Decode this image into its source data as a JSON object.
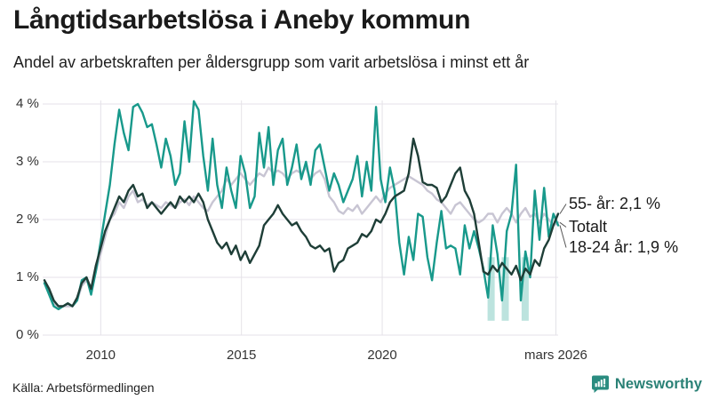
{
  "header": {
    "title": "Långtidsarbetslösa i Aneby kommun",
    "subtitle": "Andel av arbetskraften per åldersgrupp som varit arbetslösa i minst ett år"
  },
  "footer": {
    "source": "Källa: Arbetsförmedlingen",
    "brand": "Newsworthy",
    "brand_color": "#2a8176",
    "brand_icon": "newsworthy-speech-bubble-bar-chart-icon"
  },
  "chart_data": {
    "type": "line",
    "title": "Långtidsarbetslösa i Aneby kommun",
    "subtitle": "Andel av arbetskraften per åldersgrupp som varit arbetslösa i minst ett år",
    "grid_color": "#e4e2e8",
    "leader_color": "#555555",
    "highlight_color": "#7ac7bd",
    "x_axis": {
      "start": 2008.0,
      "end": 2026.25,
      "ticks": [
        {
          "value": 2010,
          "label": "2010"
        },
        {
          "value": 2015,
          "label": "2015"
        },
        {
          "value": 2020,
          "label": "2020"
        },
        {
          "value": 2026.17,
          "label": "mars 2026"
        }
      ]
    },
    "y_axis": {
      "min": 0,
      "max": 4,
      "unit": "%",
      "ticks": [
        {
          "value": 0,
          "label": "0 %"
        },
        {
          "value": 1,
          "label": "1 %"
        },
        {
          "value": 2,
          "label": "2 %"
        },
        {
          "value": 3,
          "label": "3 %"
        },
        {
          "value": 4,
          "label": "4 %"
        }
      ]
    },
    "draw_order": [
      2,
      0,
      1
    ],
    "series": [
      {
        "id": "18-24",
        "name": "18-24 år",
        "color": "#18998b",
        "latest_label": "18-24 år: 1,9 %",
        "latest_value": 1.9,
        "values": [
          0.9,
          0.7,
          0.5,
          0.45,
          0.5,
          0.55,
          0.5,
          0.6,
          0.95,
          1.0,
          0.7,
          1.1,
          1.6,
          2.1,
          2.6,
          3.3,
          3.9,
          3.5,
          3.2,
          3.95,
          4.0,
          3.85,
          3.6,
          3.65,
          3.3,
          2.9,
          3.4,
          3.1,
          2.6,
          2.8,
          3.7,
          3.0,
          4.05,
          3.9,
          3.1,
          2.5,
          3.4,
          2.6,
          2.2,
          2.9,
          2.5,
          2.2,
          3.1,
          2.8,
          2.2,
          2.4,
          3.5,
          2.9,
          3.6,
          2.6,
          3.2,
          3.4,
          2.6,
          2.9,
          3.3,
          2.7,
          3.0,
          2.6,
          3.2,
          3.3,
          2.9,
          2.5,
          2.8,
          2.6,
          2.3,
          2.5,
          2.7,
          3.1,
          2.4,
          3.0,
          2.5,
          3.95,
          2.7,
          2.3,
          2.9,
          2.5,
          1.6,
          1.05,
          1.7,
          1.3,
          2.1,
          2.05,
          1.35,
          0.95,
          1.6,
          2.15,
          1.5,
          1.55,
          1.5,
          1.05,
          1.9,
          1.5,
          1.8,
          1.5,
          1.15,
          0.65,
          1.9,
          1.4,
          0.6,
          1.8,
          2.1,
          2.95,
          0.6,
          1.45,
          1.0,
          2.5,
          1.65,
          2.55,
          1.7,
          2.1,
          1.9
        ]
      },
      {
        "id": "55plus",
        "name": "55- år",
        "color": "#1e3e37",
        "latest_label": "55- år: 2,1 %",
        "latest_value": 2.1,
        "values": [
          0.95,
          0.8,
          0.6,
          0.5,
          0.5,
          0.55,
          0.5,
          0.65,
          0.9,
          1.0,
          0.8,
          1.2,
          1.5,
          1.8,
          2.0,
          2.2,
          2.4,
          2.3,
          2.5,
          2.6,
          2.4,
          2.45,
          2.2,
          2.3,
          2.2,
          2.1,
          2.2,
          2.3,
          2.2,
          2.4,
          2.3,
          2.4,
          2.3,
          2.45,
          2.3,
          2.0,
          1.8,
          1.6,
          1.5,
          1.6,
          1.4,
          1.55,
          1.3,
          1.45,
          1.25,
          1.4,
          1.55,
          1.9,
          2.0,
          2.1,
          2.25,
          2.1,
          2.0,
          1.9,
          1.95,
          1.8,
          1.7,
          1.55,
          1.5,
          1.55,
          1.45,
          1.5,
          1.1,
          1.25,
          1.3,
          1.5,
          1.55,
          1.6,
          1.75,
          1.7,
          1.8,
          2.0,
          1.95,
          2.1,
          2.3,
          2.4,
          2.45,
          2.5,
          2.8,
          3.4,
          3.1,
          2.65,
          2.6,
          2.6,
          2.55,
          2.3,
          2.4,
          2.6,
          2.8,
          2.9,
          2.5,
          2.35,
          2.1,
          1.6,
          1.1,
          1.05,
          1.2,
          1.1,
          1.25,
          1.15,
          1.05,
          1.2,
          0.95,
          1.15,
          1.05,
          1.3,
          1.2,
          1.5,
          1.65,
          1.9,
          2.1
        ]
      },
      {
        "id": "totalt",
        "name": "Totalt",
        "color": "#c8c5d3",
        "latest_label": "Totalt",
        "latest_value": 1.95,
        "values": [
          0.9,
          0.75,
          0.55,
          0.5,
          0.5,
          0.5,
          0.5,
          0.6,
          0.85,
          0.95,
          0.8,
          1.1,
          1.4,
          1.7,
          2.0,
          2.1,
          2.3,
          2.2,
          2.4,
          2.5,
          2.3,
          2.35,
          2.25,
          2.3,
          2.25,
          2.2,
          2.3,
          2.25,
          2.2,
          2.3,
          2.35,
          2.25,
          2.4,
          2.3,
          2.2,
          2.15,
          2.3,
          2.4,
          2.5,
          2.7,
          2.6,
          2.7,
          2.8,
          2.7,
          2.6,
          2.7,
          2.8,
          2.75,
          2.9,
          2.8,
          2.85,
          2.8,
          2.7,
          2.8,
          2.85,
          2.8,
          2.9,
          2.7,
          2.8,
          2.85,
          2.7,
          2.4,
          2.3,
          2.15,
          2.1,
          2.2,
          2.15,
          2.25,
          2.1,
          2.2,
          2.3,
          2.4,
          2.3,
          2.45,
          2.55,
          2.6,
          2.65,
          2.7,
          2.75,
          2.7,
          2.65,
          2.6,
          2.5,
          2.45,
          2.35,
          2.3,
          2.2,
          2.1,
          2.25,
          2.3,
          2.2,
          2.1,
          2.0,
          1.95,
          2.0,
          2.1,
          2.1,
          1.95,
          2.1,
          2.2,
          2.1,
          1.95,
          2.1,
          2.2,
          2.05,
          2.1,
          1.95,
          2.1,
          2.0,
          1.9,
          1.95
        ]
      }
    ],
    "annotations": [
      {
        "label": "55- år: 2,1 %",
        "series_index": 1
      },
      {
        "label": "Totalt",
        "series_index": 2
      },
      {
        "label": "18-24 år: 1,9 %",
        "series_index": 0
      }
    ],
    "highlight_bars": [
      {
        "x": 2023.87,
        "top": 1.35,
        "bottom": 0.25
      },
      {
        "x": 2024.37,
        "top": 1.35,
        "bottom": 0.25
      },
      {
        "x": 2025.08,
        "top": 1.35,
        "bottom": 0.25
      }
    ]
  }
}
